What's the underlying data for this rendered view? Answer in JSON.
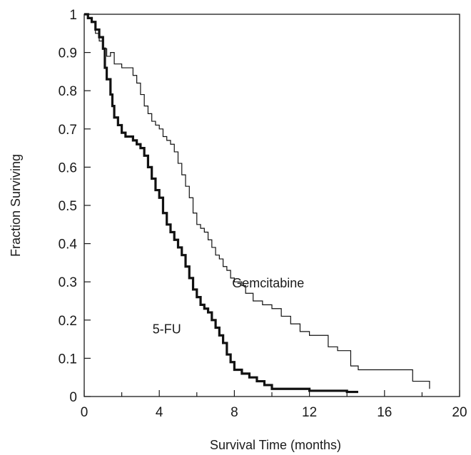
{
  "chart_data": {
    "type": "line",
    "step": true,
    "xlabel": "Survival Time (months)",
    "ylabel": "Fraction Surviving",
    "xlim": [
      0,
      20
    ],
    "ylim": [
      0,
      1
    ],
    "xticks": [
      "0",
      "4",
      "8",
      "12",
      "16",
      "20"
    ],
    "yticks": [
      "0",
      "0.1",
      "0.2",
      "0.3",
      "0.4",
      "0.5",
      "0.6",
      "0.7",
      "0.8",
      "0.9",
      "1"
    ],
    "grid": false,
    "legend": "none",
    "annotations": [
      {
        "text": "Gemcitabine",
        "series": "Gemcitabine"
      },
      {
        "text": "5-FU",
        "series": "5-FU"
      }
    ],
    "series": [
      {
        "name": "Gemcitabine",
        "line": "thin",
        "points": [
          [
            0,
            1
          ],
          [
            0.2,
            0.99
          ],
          [
            0.4,
            0.98
          ],
          [
            0.6,
            0.95
          ],
          [
            0.8,
            0.93
          ],
          [
            1.0,
            0.91
          ],
          [
            1.2,
            0.89
          ],
          [
            1.4,
            0.9
          ],
          [
            1.6,
            0.87
          ],
          [
            1.8,
            0.87
          ],
          [
            2.0,
            0.86
          ],
          [
            2.4,
            0.86
          ],
          [
            2.6,
            0.84
          ],
          [
            2.8,
            0.82
          ],
          [
            3.0,
            0.79
          ],
          [
            3.2,
            0.76
          ],
          [
            3.4,
            0.74
          ],
          [
            3.6,
            0.72
          ],
          [
            3.8,
            0.71
          ],
          [
            4.0,
            0.7
          ],
          [
            4.2,
            0.68
          ],
          [
            4.4,
            0.67
          ],
          [
            4.6,
            0.66
          ],
          [
            4.8,
            0.64
          ],
          [
            5.0,
            0.61
          ],
          [
            5.2,
            0.58
          ],
          [
            5.4,
            0.55
          ],
          [
            5.6,
            0.52
          ],
          [
            5.8,
            0.48
          ],
          [
            6.0,
            0.45
          ],
          [
            6.2,
            0.44
          ],
          [
            6.4,
            0.43
          ],
          [
            6.6,
            0.41
          ],
          [
            6.8,
            0.39
          ],
          [
            7.0,
            0.37
          ],
          [
            7.2,
            0.36
          ],
          [
            7.4,
            0.34
          ],
          [
            7.6,
            0.33
          ],
          [
            7.8,
            0.31
          ],
          [
            8.0,
            0.3
          ],
          [
            8.4,
            0.29
          ],
          [
            8.6,
            0.27
          ],
          [
            9.0,
            0.25
          ],
          [
            9.5,
            0.24
          ],
          [
            10.0,
            0.23
          ],
          [
            10.5,
            0.21
          ],
          [
            11.0,
            0.19
          ],
          [
            11.5,
            0.17
          ],
          [
            12.0,
            0.16
          ],
          [
            12.5,
            0.16
          ],
          [
            13.0,
            0.13
          ],
          [
            13.5,
            0.12
          ],
          [
            14.0,
            0.12
          ],
          [
            14.2,
            0.08
          ],
          [
            14.6,
            0.07
          ],
          [
            17.0,
            0.07
          ],
          [
            17.5,
            0.04
          ],
          [
            18.4,
            0.02
          ]
        ]
      },
      {
        "name": "5-FU",
        "line": "thick",
        "points": [
          [
            0,
            1
          ],
          [
            0.2,
            0.99
          ],
          [
            0.4,
            0.98
          ],
          [
            0.6,
            0.96
          ],
          [
            0.8,
            0.94
          ],
          [
            1.0,
            0.91
          ],
          [
            1.1,
            0.86
          ],
          [
            1.2,
            0.83
          ],
          [
            1.4,
            0.79
          ],
          [
            1.5,
            0.76
          ],
          [
            1.6,
            0.73
          ],
          [
            1.8,
            0.71
          ],
          [
            2.0,
            0.69
          ],
          [
            2.2,
            0.68
          ],
          [
            2.6,
            0.67
          ],
          [
            2.8,
            0.66
          ],
          [
            3.0,
            0.65
          ],
          [
            3.2,
            0.63
          ],
          [
            3.4,
            0.6
          ],
          [
            3.6,
            0.57
          ],
          [
            3.8,
            0.54
          ],
          [
            4.0,
            0.52
          ],
          [
            4.2,
            0.48
          ],
          [
            4.4,
            0.45
          ],
          [
            4.6,
            0.43
          ],
          [
            4.8,
            0.41
          ],
          [
            5.0,
            0.39
          ],
          [
            5.2,
            0.37
          ],
          [
            5.4,
            0.34
          ],
          [
            5.6,
            0.31
          ],
          [
            5.8,
            0.28
          ],
          [
            6.0,
            0.26
          ],
          [
            6.2,
            0.24
          ],
          [
            6.4,
            0.23
          ],
          [
            6.6,
            0.22
          ],
          [
            6.8,
            0.2
          ],
          [
            7.0,
            0.18
          ],
          [
            7.2,
            0.16
          ],
          [
            7.4,
            0.14
          ],
          [
            7.6,
            0.11
          ],
          [
            7.8,
            0.09
          ],
          [
            8.0,
            0.07
          ],
          [
            8.4,
            0.06
          ],
          [
            8.8,
            0.05
          ],
          [
            9.2,
            0.04
          ],
          [
            9.6,
            0.03
          ],
          [
            10.0,
            0.02
          ],
          [
            12.0,
            0.015
          ],
          [
            14.0,
            0.012
          ],
          [
            14.6,
            0.012
          ]
        ]
      }
    ]
  }
}
